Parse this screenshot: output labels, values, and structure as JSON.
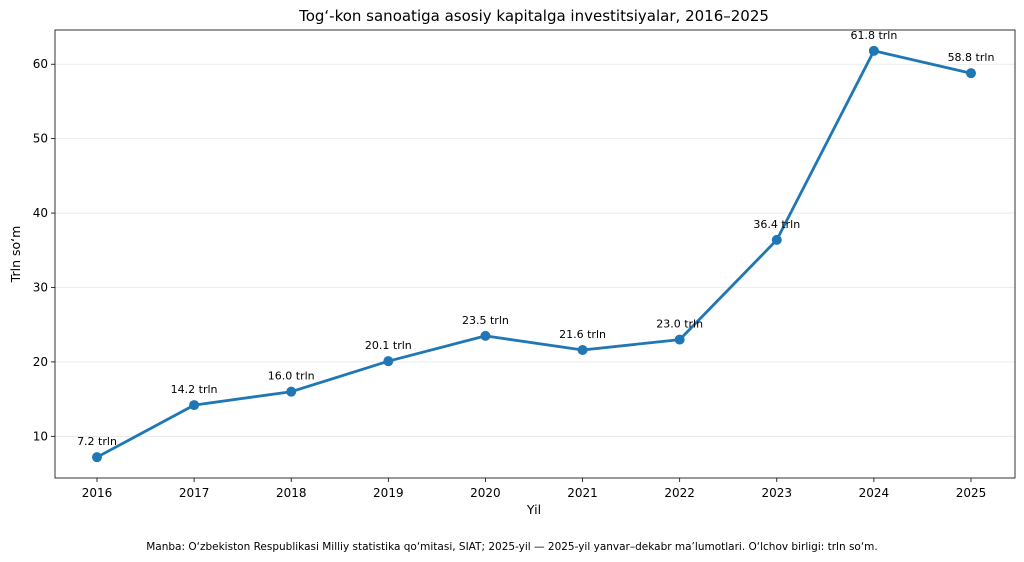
{
  "chart_data": {
    "type": "line",
    "title": "Tog‘-kon sanoatiga asosiy kapitalga investitsiyalar, 2016–2025",
    "xlabel": "Yil",
    "ylabel": "Trln so‘m",
    "x": [
      "2016",
      "2017",
      "2018",
      "2019",
      "2020",
      "2021",
      "2022",
      "2023",
      "2024",
      "2025"
    ],
    "series": [
      {
        "values": [
          7.2,
          14.2,
          16.0,
          20.1,
          23.5,
          21.6,
          23.0,
          36.4,
          61.8,
          58.8
        ],
        "labels": [
          "7.2 trln",
          "14.2 trln",
          "16.0 trln",
          "20.1 trln",
          "23.5 trln",
          "21.6 trln",
          "23.0 trln",
          "36.4 trln",
          "61.8 trln",
          "58.8 trln"
        ],
        "color": "#1f77b4"
      }
    ],
    "yticks": [
      10,
      20,
      30,
      40,
      50,
      60
    ],
    "ylim": [
      4.4,
      64.6
    ],
    "grid": "horizontal",
    "source_note": "Manba: O‘zbekiston Respublikasi Milliy statistika qo‘mitasi, SIAT; 2025-yil — 2025-yil yanvar–dekabr ma’lumotlari. O‘lchov birligi: trln so‘m."
  }
}
